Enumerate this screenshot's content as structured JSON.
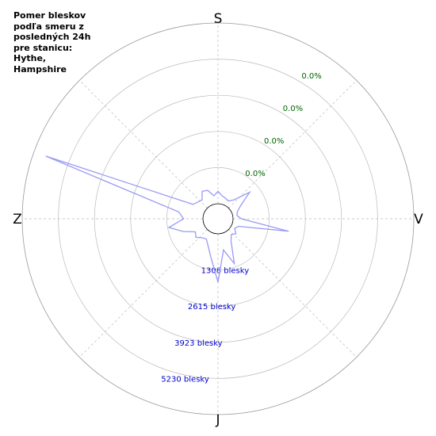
{
  "chart_data": {
    "type": "polar-line",
    "title": "Pomer bleskov podľa smeru z posledných 24h pre stanicu: Hythe, Hampshire",
    "directions": [
      "S",
      "V",
      "J",
      "Z"
    ],
    "x": [
      0,
      10,
      20,
      30,
      40,
      50,
      60,
      70,
      80,
      90,
      100,
      110,
      120,
      130,
      140,
      150,
      160,
      170,
      180,
      190,
      200,
      210,
      220,
      230,
      240,
      250,
      260,
      270,
      280,
      290,
      300,
      310,
      320,
      330,
      340,
      350
    ],
    "series": [
      {
        "color": "#9a9af5",
        "values": [
          450,
          300,
          250,
          200,
          350,
          950,
          400,
          200,
          150,
          300,
          2050,
          250,
          150,
          300,
          200,
          400,
          1180,
          600,
          1750,
          900,
          500,
          300,
          350,
          500,
          400,
          800,
          1260,
          700,
          900,
          6085,
          500,
          400,
          350,
          600,
          550,
          300
        ]
      }
    ],
    "ylim": [
      0,
      6538
    ],
    "yticks": [
      {
        "value": 1308,
        "label": "1308 blesky"
      },
      {
        "value": 2615,
        "label": "2615 blesky"
      },
      {
        "value": 3923,
        "label": "3923 blesky"
      },
      {
        "value": 5230,
        "label": "5230 blesky"
      }
    ],
    "percent_labels": [
      "0.0%",
      "0.0%",
      "0.0%",
      "0.0%"
    ],
    "tick_label_color": "#0000cc",
    "percent_label_color": "#006400",
    "grid": true
  }
}
